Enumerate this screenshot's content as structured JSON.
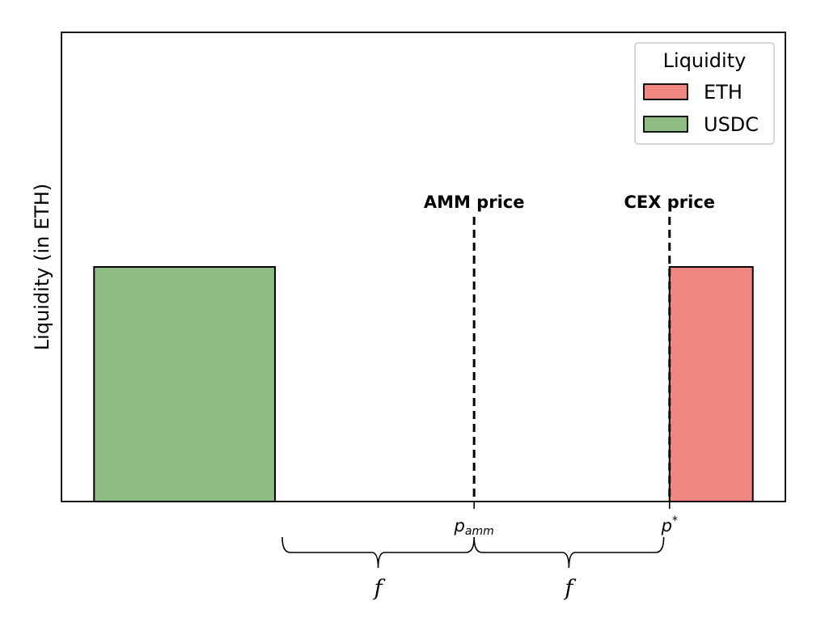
{
  "chart_data": {
    "type": "bar",
    "title": "",
    "xlabel": "",
    "ylabel": "Liquidity (in ETH)",
    "xlim": [
      0,
      10
    ],
    "ylim": [
      0,
      2
    ],
    "grid": false,
    "legend": {
      "title": "Liquidity",
      "placement": "top-right",
      "entries": [
        {
          "label": "ETH",
          "color": "#f08783"
        },
        {
          "label": "USDC",
          "color": "#8fbc84"
        }
      ]
    },
    "bars": [
      {
        "series": "USDC",
        "x_start": 0.45,
        "x_end": 2.95,
        "value": 1.0,
        "color": "#8fbc84"
      },
      {
        "series": "ETH",
        "x_start": 8.4,
        "x_end": 9.55,
        "value": 1.0,
        "color": "#f08783"
      }
    ],
    "vlines": [
      {
        "x": 5.7,
        "label": "AMM price",
        "tick_label": "p_amm",
        "tick_base": "p",
        "tick_sub": "amm"
      },
      {
        "x": 8.4,
        "label": "CEX price",
        "tick_label": "p^*",
        "tick_base": "p",
        "tick_sup": "*"
      }
    ],
    "braces": [
      {
        "x_start": 3.05,
        "x_end": 5.7,
        "label": "f"
      },
      {
        "x_start": 5.7,
        "x_end": 8.32,
        "label": "f"
      }
    ]
  }
}
